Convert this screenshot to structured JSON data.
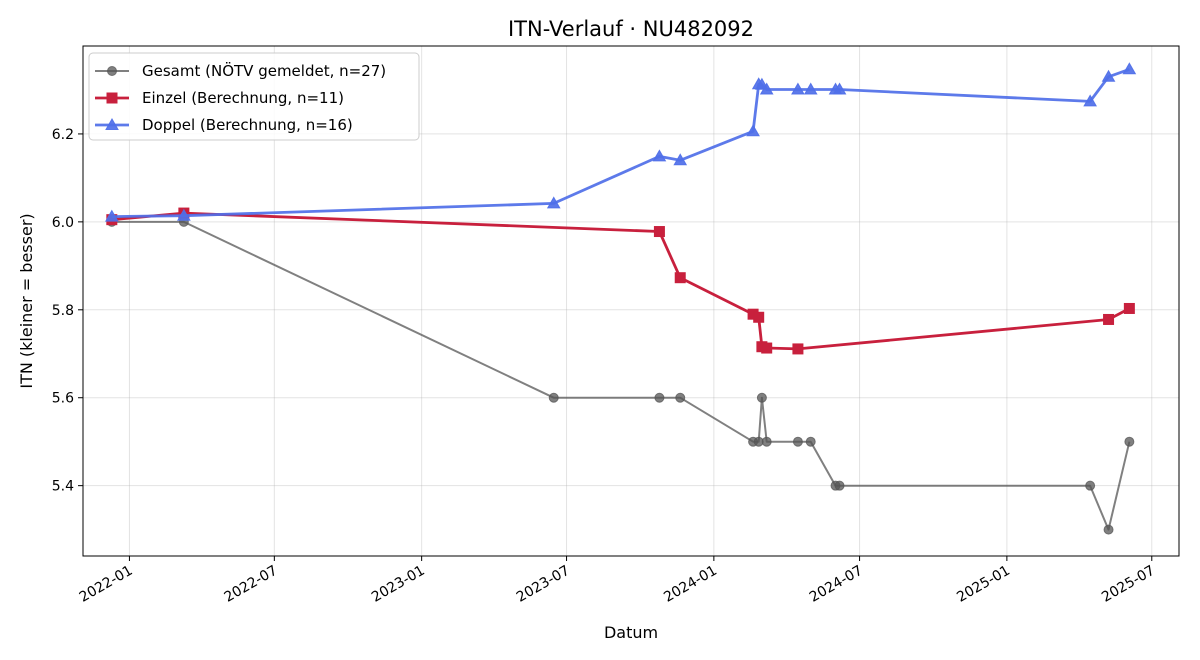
{
  "chart_data": {
    "type": "line",
    "title": "ITN-Verlauf · NU482092",
    "xlabel": "Datum",
    "ylabel": "ITN  (kleiner = besser)",
    "x_type": "date",
    "xlim": [
      "2021-11-04",
      "2025-08-04"
    ],
    "ylim": [
      5.24,
      6.4
    ],
    "x_ticks": [
      "2022-01",
      "2022-07",
      "2023-01",
      "2023-07",
      "2024-01",
      "2024-07",
      "2025-01",
      "2025-07"
    ],
    "y_ticks": [
      "5.4",
      "5.6",
      "5.8",
      "6.0",
      "6.2"
    ],
    "grid": true,
    "legend_position": "top-left",
    "series": [
      {
        "name": "Gesamt (NÖTV gemeldet, n=27)",
        "color": "#555555",
        "marker": "circle",
        "points": [
          {
            "x": "2021-12-10",
            "y": 6.0
          },
          {
            "x": "2022-03-10",
            "y": 6.0
          },
          {
            "x": "2023-06-15",
            "y": 5.6
          },
          {
            "x": "2023-10-25",
            "y": 5.6
          },
          {
            "x": "2023-11-20",
            "y": 5.6
          },
          {
            "x": "2024-02-19",
            "y": 5.5
          },
          {
            "x": "2024-02-26",
            "y": 5.5
          },
          {
            "x": "2024-03-01",
            "y": 5.6
          },
          {
            "x": "2024-03-07",
            "y": 5.5
          },
          {
            "x": "2024-04-15",
            "y": 5.5
          },
          {
            "x": "2024-05-01",
            "y": 5.5
          },
          {
            "x": "2024-06-01",
            "y": 5.4
          },
          {
            "x": "2024-06-06",
            "y": 5.4
          },
          {
            "x": "2025-04-15",
            "y": 5.4
          },
          {
            "x": "2025-05-08",
            "y": 5.3
          },
          {
            "x": "2025-06-03",
            "y": 5.5
          }
        ]
      },
      {
        "name": "Einzel (Berechnung, n=11)",
        "color": "#c8203d",
        "marker": "square",
        "points": [
          {
            "x": "2021-12-10",
            "y": 6.005
          },
          {
            "x": "2022-03-10",
            "y": 6.02
          },
          {
            "x": "2023-10-25",
            "y": 5.978
          },
          {
            "x": "2023-11-20",
            "y": 5.873
          },
          {
            "x": "2024-02-19",
            "y": 5.79
          },
          {
            "x": "2024-02-26",
            "y": 5.783
          },
          {
            "x": "2024-03-01",
            "y": 5.716
          },
          {
            "x": "2024-03-07",
            "y": 5.713
          },
          {
            "x": "2024-04-15",
            "y": 5.711
          },
          {
            "x": "2025-05-08",
            "y": 5.778
          },
          {
            "x": "2025-06-03",
            "y": 5.803
          }
        ]
      },
      {
        "name": "Doppel (Berechnung, n=16)",
        "color": "#4f6fe8",
        "marker": "triangle",
        "points": [
          {
            "x": "2021-12-10",
            "y": 6.012
          },
          {
            "x": "2022-03-10",
            "y": 6.014
          },
          {
            "x": "2023-06-15",
            "y": 6.042
          },
          {
            "x": "2023-10-25",
            "y": 6.149
          },
          {
            "x": "2023-11-20",
            "y": 6.14
          },
          {
            "x": "2024-02-19",
            "y": 6.206
          },
          {
            "x": "2024-02-26",
            "y": 6.313
          },
          {
            "x": "2024-03-01",
            "y": 6.312
          },
          {
            "x": "2024-03-07",
            "y": 6.301
          },
          {
            "x": "2024-04-15",
            "y": 6.301
          },
          {
            "x": "2024-05-01",
            "y": 6.301
          },
          {
            "x": "2024-06-01",
            "y": 6.301
          },
          {
            "x": "2024-06-06",
            "y": 6.301
          },
          {
            "x": "2025-04-15",
            "y": 6.274
          },
          {
            "x": "2025-05-08",
            "y": 6.33
          },
          {
            "x": "2025-06-03",
            "y": 6.347
          }
        ]
      }
    ]
  }
}
